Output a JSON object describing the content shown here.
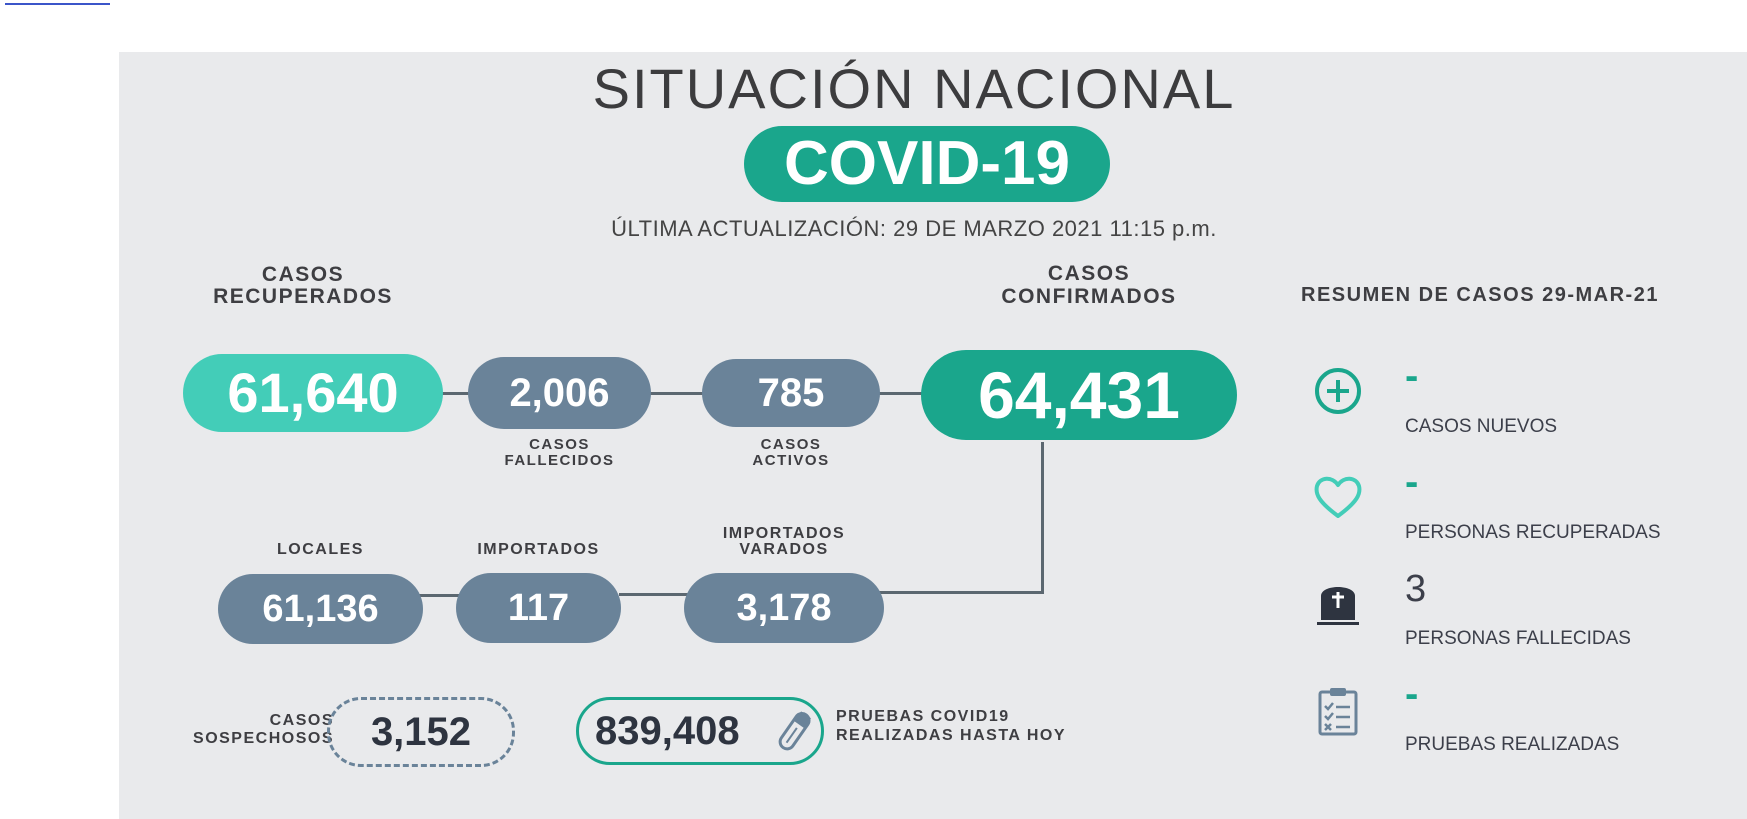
{
  "header": {
    "title": "SITUACIÓN NACIONAL",
    "badge": "COVID-19",
    "last_update": "ÚLTIMA ACTUALIZACIÓN: 29 DE MARZO 2021 11:15 p.m."
  },
  "main": {
    "recuperados": {
      "label_1": "CASOS",
      "label_2": "RECUPERADOS",
      "value": "61,640"
    },
    "fallecidos": {
      "label_1": "CASOS",
      "label_2": "FALLECIDOS",
      "value": "2,006"
    },
    "activos": {
      "label_1": "CASOS",
      "label_2": "ACTIVOS",
      "value": "785"
    },
    "confirmados": {
      "label_1": "CASOS",
      "label_2": "CONFIRMADOS",
      "value": "64,431"
    },
    "locales": {
      "label": "LOCALES",
      "value": "61,136"
    },
    "importados": {
      "label": "IMPORTADOS",
      "value": "117"
    },
    "varados": {
      "label_1": "IMPORTADOS",
      "label_2": "VARADOS",
      "value": "3,178"
    },
    "sospechosos": {
      "label_1": "CASOS",
      "label_2": "SOSPECHOSOS",
      "value": "3,152"
    },
    "pruebas": {
      "value": "839,408",
      "label_1": "PRUEBAS COVID19",
      "label_2": "REALIZADAS HASTA HOY"
    }
  },
  "resumen": {
    "title": "RESUMEN DE CASOS 29-MAR-21",
    "items": [
      {
        "icon": "plus-circle-icon",
        "value": "-",
        "label": "CASOS NUEVOS"
      },
      {
        "icon": "heart-icon",
        "value": "-",
        "label": "PERSONAS RECUPERADAS"
      },
      {
        "icon": "tombstone-icon",
        "value": "3",
        "label": "PERSONAS FALLECIDAS"
      },
      {
        "icon": "clipboard-checklist-icon",
        "value": "-",
        "label": "PRUEBAS REALIZADAS"
      }
    ]
  },
  "colors": {
    "teal": "#1aa68c",
    "mint": "#43cdb8",
    "slate": "#6a8399",
    "panel": "#e9eaec",
    "text": "#3c3c3e"
  }
}
